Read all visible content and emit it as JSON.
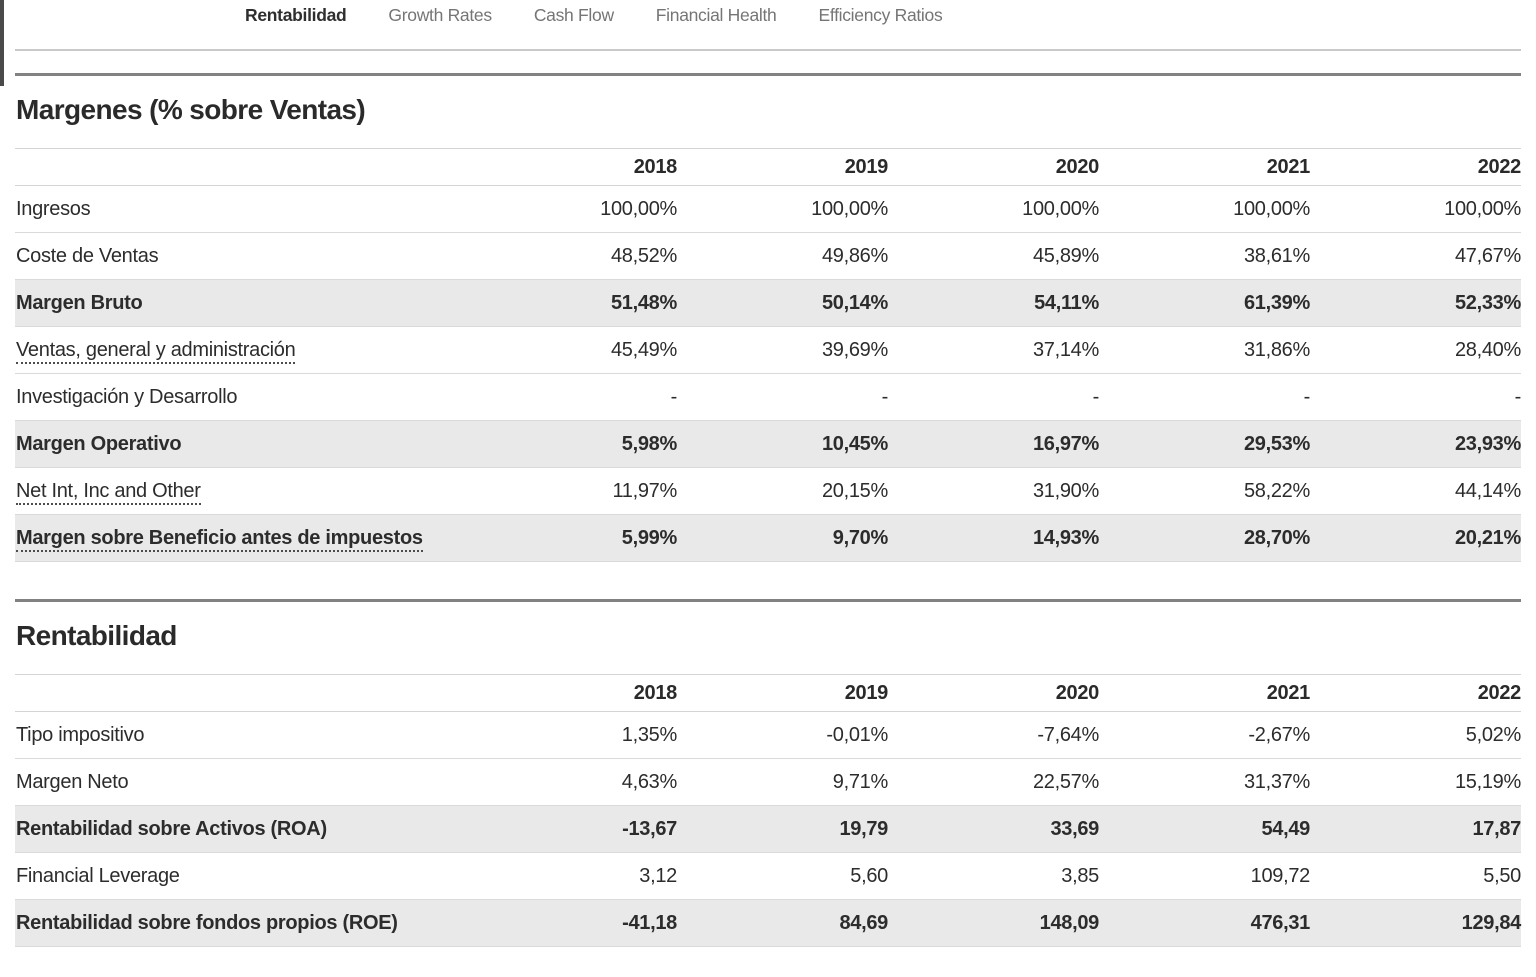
{
  "tab_bar": {
    "tabs": [
      {
        "label": "Rentabilidad",
        "active": true
      },
      {
        "label": "Growth Rates",
        "active": false
      },
      {
        "label": "Cash Flow",
        "active": false
      },
      {
        "label": "Financial Health",
        "active": false
      },
      {
        "label": "Efficiency Ratios",
        "active": false
      }
    ]
  },
  "colors": {
    "active_tab_text": "#2e2e2e",
    "inactive_tab_text": "#757575",
    "section_border": "#828282",
    "shaded_row_bg": "#e9e9e9",
    "light_border": "#d4d4d4"
  },
  "sections": [
    {
      "title": "Margenes (% sobre Ventas)",
      "years": [
        "2018",
        "2019",
        "2020",
        "2021",
        "2022"
      ],
      "rows": [
        {
          "label": "Ingresos",
          "values": [
            "100,00%",
            "100,00%",
            "100,00%",
            "100,00%",
            "100,00%"
          ],
          "emphasis": false,
          "tooltip": false
        },
        {
          "label": "Coste de Ventas",
          "values": [
            "48,52%",
            "49,86%",
            "45,89%",
            "38,61%",
            "47,67%"
          ],
          "emphasis": false,
          "tooltip": false
        },
        {
          "label": "Margen Bruto",
          "values": [
            "51,48%",
            "50,14%",
            "54,11%",
            "61,39%",
            "52,33%"
          ],
          "emphasis": true,
          "tooltip": false
        },
        {
          "label": "Ventas, general y administración",
          "values": [
            "45,49%",
            "39,69%",
            "37,14%",
            "31,86%",
            "28,40%"
          ],
          "emphasis": false,
          "tooltip": true
        },
        {
          "label": "Investigación y Desarrollo",
          "values": [
            "-",
            "-",
            "-",
            "-",
            "-"
          ],
          "emphasis": false,
          "tooltip": false
        },
        {
          "label": "Margen Operativo",
          "values": [
            "5,98%",
            "10,45%",
            "16,97%",
            "29,53%",
            "23,93%"
          ],
          "emphasis": true,
          "tooltip": false
        },
        {
          "label": "Net Int, Inc and Other",
          "values": [
            "11,97%",
            "20,15%",
            "31,90%",
            "58,22%",
            "44,14%"
          ],
          "emphasis": false,
          "tooltip": true
        },
        {
          "label": "Margen sobre Beneficio antes de impuestos",
          "values": [
            "5,99%",
            "9,70%",
            "14,93%",
            "28,70%",
            "20,21%"
          ],
          "emphasis": true,
          "tooltip": true
        }
      ]
    },
    {
      "title": "Rentabilidad",
      "years": [
        "2018",
        "2019",
        "2020",
        "2021",
        "2022"
      ],
      "rows": [
        {
          "label": "Tipo impositivo",
          "values": [
            "1,35%",
            "-0,01%",
            "-7,64%",
            "-2,67%",
            "5,02%"
          ],
          "emphasis": false,
          "tooltip": false
        },
        {
          "label": "Margen Neto",
          "values": [
            "4,63%",
            "9,71%",
            "22,57%",
            "31,37%",
            "15,19%"
          ],
          "emphasis": false,
          "tooltip": false
        },
        {
          "label": "Rentabilidad sobre Activos (ROA)",
          "values": [
            "-13,67",
            "19,79",
            "33,69",
            "54,49",
            "17,87"
          ],
          "emphasis": true,
          "tooltip": false
        },
        {
          "label": "Financial Leverage",
          "values": [
            "3,12",
            "5,60",
            "3,85",
            "109,72",
            "5,50"
          ],
          "emphasis": false,
          "tooltip": false
        },
        {
          "label": "Rentabilidad sobre fondos propios (ROE)",
          "values": [
            "-41,18",
            "84,69",
            "148,09",
            "476,31",
            "129,84"
          ],
          "emphasis": true,
          "tooltip": false
        }
      ]
    }
  ]
}
